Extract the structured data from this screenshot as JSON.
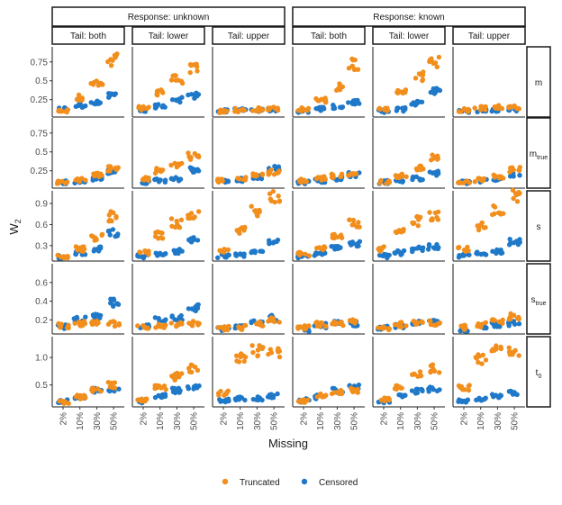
{
  "chart_data": {
    "type": "scatter",
    "xlabel": "Missing",
    "ylabel": "W2",
    "facet_columns": {
      "response": [
        "Response: unknown",
        "Response: known"
      ],
      "tail": [
        "Tail: both",
        "Tail: lower",
        "Tail: upper"
      ]
    },
    "facet_rows": [
      {
        "id": "m",
        "label": "m",
        "sub": "",
        "yticks": [
          0.25,
          0.5,
          0.75
        ],
        "ylim": [
          0.02,
          0.95
        ]
      },
      {
        "id": "m_true",
        "label": "m",
        "sub": "true",
        "yticks": [
          0.25,
          0.5,
          0.75
        ],
        "ylim": [
          0.02,
          0.95
        ]
      },
      {
        "id": "s",
        "label": "s",
        "sub": "",
        "yticks": [
          0.3,
          0.6,
          0.9
        ],
        "ylim": [
          0.08,
          1.08
        ]
      },
      {
        "id": "s_true",
        "label": "s",
        "sub": "true",
        "yticks": [
          0.2,
          0.4,
          0.6
        ],
        "ylim": [
          0.05,
          0.8
        ]
      },
      {
        "id": "t0",
        "label": "t",
        "sub": "0",
        "yticks": [
          0.5,
          1.0
        ],
        "ylim": [
          0.1,
          1.38
        ]
      }
    ],
    "categories": [
      "2%",
      "10%",
      "30%",
      "50%"
    ],
    "series": [
      {
        "name": "Truncated",
        "color": "#F28E1C"
      },
      {
        "name": "Censored",
        "color": "#1F78C8"
      }
    ],
    "legend_position": "bottom",
    "grid": false,
    "points_per_category": 8,
    "panels": {
      "m": [
        {
          "Truncated": [
            0.1,
            0.28,
            0.45,
            0.78
          ],
          "Censored": [
            0.12,
            0.17,
            0.21,
            0.3
          ]
        },
        {
          "Truncated": [
            0.14,
            0.34,
            0.52,
            0.66
          ],
          "Censored": [
            0.11,
            0.16,
            0.25,
            0.3
          ]
        },
        {
          "Truncated": [
            0.1,
            0.11,
            0.12,
            0.13
          ],
          "Censored": [
            0.1,
            0.11,
            0.11,
            0.12
          ]
        },
        {
          "Truncated": [
            0.12,
            0.24,
            0.42,
            0.72
          ],
          "Censored": [
            0.1,
            0.13,
            0.16,
            0.22
          ]
        },
        {
          "Truncated": [
            0.12,
            0.36,
            0.56,
            0.75
          ],
          "Censored": [
            0.1,
            0.12,
            0.2,
            0.36
          ]
        },
        {
          "Truncated": [
            0.11,
            0.14,
            0.15,
            0.15
          ],
          "Censored": [
            0.1,
            0.11,
            0.11,
            0.12
          ]
        }
      ],
      "m_true": [
        {
          "Truncated": [
            0.1,
            0.13,
            0.2,
            0.28
          ],
          "Censored": [
            0.1,
            0.11,
            0.15,
            0.24
          ]
        },
        {
          "Truncated": [
            0.14,
            0.25,
            0.32,
            0.45
          ],
          "Censored": [
            0.1,
            0.12,
            0.14,
            0.26
          ]
        },
        {
          "Truncated": [
            0.12,
            0.14,
            0.19,
            0.23
          ],
          "Censored": [
            0.11,
            0.13,
            0.17,
            0.28
          ]
        },
        {
          "Truncated": [
            0.12,
            0.15,
            0.19,
            0.21
          ],
          "Censored": [
            0.1,
            0.12,
            0.15,
            0.2
          ]
        },
        {
          "Truncated": [
            0.1,
            0.18,
            0.3,
            0.42
          ],
          "Censored": [
            0.1,
            0.12,
            0.15,
            0.22
          ]
        },
        {
          "Truncated": [
            0.1,
            0.13,
            0.18,
            0.27
          ],
          "Censored": [
            0.1,
            0.12,
            0.14,
            0.2
          ]
        }
      ],
      "s": [
        {
          "Truncated": [
            0.15,
            0.25,
            0.42,
            0.72
          ],
          "Censored": [
            0.14,
            0.2,
            0.25,
            0.48
          ]
        },
        {
          "Truncated": [
            0.2,
            0.45,
            0.62,
            0.72
          ],
          "Censored": [
            0.15,
            0.18,
            0.22,
            0.38
          ]
        },
        {
          "Truncated": [
            0.22,
            0.52,
            0.8,
            0.98
          ],
          "Censored": [
            0.15,
            0.17,
            0.2,
            0.36
          ]
        },
        {
          "Truncated": [
            0.18,
            0.26,
            0.45,
            0.62
          ],
          "Censored": [
            0.14,
            0.18,
            0.28,
            0.33
          ]
        },
        {
          "Truncated": [
            0.25,
            0.48,
            0.65,
            0.72
          ],
          "Censored": [
            0.15,
            0.2,
            0.25,
            0.28
          ]
        },
        {
          "Truncated": [
            0.25,
            0.58,
            0.82,
            1.0
          ],
          "Censored": [
            0.15,
            0.18,
            0.22,
            0.35
          ]
        }
      ],
      "s_true": [
        {
          "Truncated": [
            0.14,
            0.16,
            0.16,
            0.16
          ],
          "Censored": [
            0.13,
            0.2,
            0.23,
            0.38
          ]
        },
        {
          "Truncated": [
            0.12,
            0.14,
            0.15,
            0.16
          ],
          "Censored": [
            0.13,
            0.21,
            0.22,
            0.33
          ]
        },
        {
          "Truncated": [
            0.11,
            0.12,
            0.16,
            0.2
          ],
          "Censored": [
            0.1,
            0.13,
            0.17,
            0.22
          ]
        },
        {
          "Truncated": [
            0.12,
            0.15,
            0.16,
            0.18
          ],
          "Censored": [
            0.1,
            0.14,
            0.16,
            0.16
          ]
        },
        {
          "Truncated": [
            0.12,
            0.15,
            0.16,
            0.17
          ],
          "Censored": [
            0.12,
            0.14,
            0.16,
            0.18
          ]
        },
        {
          "Truncated": [
            0.12,
            0.15,
            0.18,
            0.24
          ],
          "Censored": [
            0.1,
            0.12,
            0.15,
            0.16
          ]
        }
      ],
      "t0": [
        {
          "Truncated": [
            0.18,
            0.28,
            0.4,
            0.5
          ],
          "Censored": [
            0.2,
            0.28,
            0.4,
            0.42
          ]
        },
        {
          "Truncated": [
            0.22,
            0.45,
            0.65,
            0.8
          ],
          "Censored": [
            0.2,
            0.3,
            0.4,
            0.45
          ]
        },
        {
          "Truncated": [
            0.35,
            0.98,
            1.12,
            1.1
          ],
          "Censored": [
            0.22,
            0.25,
            0.25,
            0.3
          ]
        },
        {
          "Truncated": [
            0.2,
            0.3,
            0.38,
            0.4
          ],
          "Censored": [
            0.22,
            0.28,
            0.4,
            0.45
          ]
        },
        {
          "Truncated": [
            0.24,
            0.45,
            0.68,
            0.8
          ],
          "Censored": [
            0.2,
            0.3,
            0.38,
            0.42
          ]
        },
        {
          "Truncated": [
            0.45,
            0.98,
            1.15,
            1.12
          ],
          "Censored": [
            0.2,
            0.25,
            0.3,
            0.35
          ]
        }
      ]
    }
  }
}
